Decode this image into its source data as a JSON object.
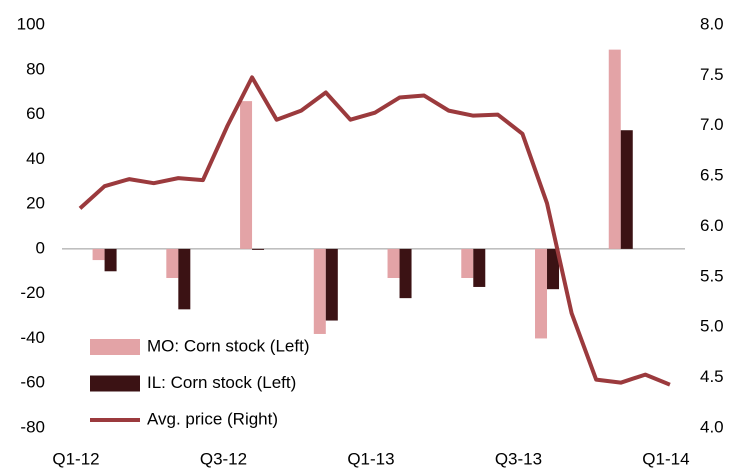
{
  "chart_data": {
    "type": "bar-line",
    "categories": [
      "Q1-12",
      null,
      null,
      null,
      null,
      null,
      "Q3-12",
      null,
      null,
      null,
      null,
      null,
      "Q1-13",
      null,
      null,
      null,
      null,
      null,
      "Q3-13",
      null,
      null,
      null,
      null,
      null,
      "Q1-14"
    ],
    "series": [
      {
        "name": "MO: Corn stock (Left)",
        "color": "#e3a3a6",
        "type": "bar",
        "axis": "y",
        "values": [
          null,
          -5,
          null,
          null,
          -13,
          null,
          null,
          66,
          null,
          null,
          -38,
          null,
          null,
          -13,
          null,
          null,
          -13,
          null,
          null,
          -40,
          null,
          null,
          89,
          null,
          null
        ]
      },
      {
        "name": "IL: Corn stock (Left)",
        "color": "#3b1214",
        "type": "bar",
        "axis": "y",
        "values": [
          null,
          -10,
          null,
          null,
          -27,
          null,
          null,
          0,
          null,
          null,
          -32,
          null,
          null,
          -22,
          null,
          null,
          -17,
          null,
          null,
          -18,
          null,
          null,
          53,
          null,
          null
        ]
      },
      {
        "name": "Avg. price (Right)",
        "color": "#9b3a3d",
        "type": "line",
        "axis": "y2",
        "values": [
          6.18,
          6.4,
          6.47,
          6.43,
          6.48,
          6.46,
          7.0,
          7.48,
          7.06,
          7.15,
          7.33,
          7.06,
          7.13,
          7.28,
          7.3,
          7.15,
          7.1,
          7.11,
          6.92,
          6.23,
          5.14,
          4.48,
          4.45,
          4.53,
          4.43
        ]
      }
    ],
    "ylim": [
      -80,
      100
    ],
    "yticks": [
      -80,
      -60,
      -40,
      -20,
      0,
      20,
      40,
      60,
      80,
      100
    ],
    "y2lim": [
      4,
      8
    ],
    "y2ticks": [
      {
        "value": 4,
        "label": "4.0"
      },
      {
        "value": 4.5,
        "label": "4.5"
      },
      {
        "value": 5,
        "label": "5.0"
      },
      {
        "value": 5.5,
        "label": "5.5"
      },
      {
        "value": 6,
        "label": "6.0"
      },
      {
        "value": 6.5,
        "label": "6.5"
      },
      {
        "value": 7,
        "label": "7.0"
      },
      {
        "value": 7.5,
        "label": "7.5"
      },
      {
        "value": 8,
        "label": "8.0"
      }
    ],
    "grid": false
  }
}
